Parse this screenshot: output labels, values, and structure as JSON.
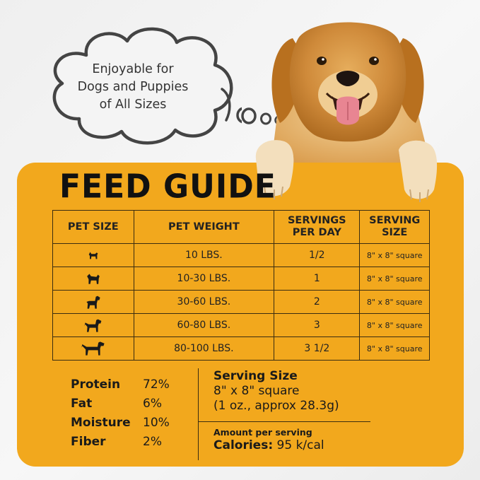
{
  "bubble": {
    "lines": [
      "Enjoyable for",
      "Dogs and Puppies",
      "of All Sizes"
    ]
  },
  "title": "FEED GUIDE",
  "table": {
    "headers": {
      "pet_size": "PET SIZE",
      "pet_weight": "PET WEIGHT",
      "servings_per_day": [
        "SERVINGS",
        "PER DAY"
      ],
      "serving_size": [
        "SERVING",
        "SIZE"
      ]
    },
    "rows": [
      {
        "size_icon": "tiny-dog-silhouette-icon",
        "weight": "10 LBS.",
        "servings": "1/2",
        "serving_size": "8\" x 8\" square"
      },
      {
        "size_icon": "small-dog-silhouette-icon",
        "weight": "10-30 LBS.",
        "servings": "1",
        "serving_size": "8\" x 8\" square"
      },
      {
        "size_icon": "medium-dog-silhouette-icon",
        "weight": "30-60 LBS.",
        "servings": "2",
        "serving_size": "8\" x 8\" square"
      },
      {
        "size_icon": "large-dog-silhouette-icon",
        "weight": "60-80 LBS.",
        "servings": "3",
        "serving_size": "8\" x 8\" square"
      },
      {
        "size_icon": "xlarge-dog-silhouette-icon",
        "weight": "80-100 LBS.",
        "servings": "3 1/2",
        "serving_size": "8\" x 8\" square"
      }
    ]
  },
  "nutrition": [
    {
      "name": "Protein",
      "value": "72%"
    },
    {
      "name": "Fat",
      "value": "6%"
    },
    {
      "name": "Moisture",
      "value": "10%"
    },
    {
      "name": "Fiber",
      "value": "2%"
    }
  ],
  "serving": {
    "heading": "Serving Size",
    "line1": "8\" x 8\" square",
    "line2": "(1 oz., approx 28.3g)"
  },
  "amount": {
    "label": "Amount per serving",
    "calories_label": "Calories:",
    "calories_value": " 95 k/cal"
  },
  "colors": {
    "panel": "#f2a81d",
    "text": "#111111"
  }
}
